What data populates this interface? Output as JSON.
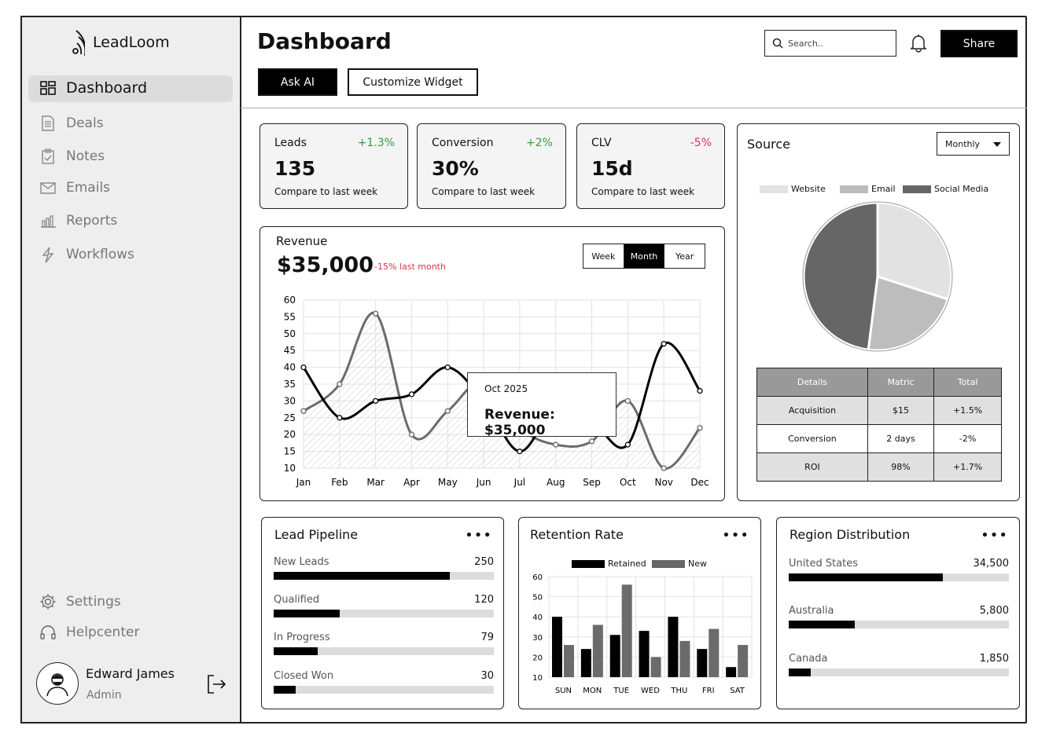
{
  "app": {
    "brand": "LeadLoom"
  },
  "sidebar": {
    "items": [
      {
        "label": "Dashboard"
      },
      {
        "label": "Deals"
      },
      {
        "label": "Notes"
      },
      {
        "label": "Emails"
      },
      {
        "label": "Reports"
      },
      {
        "label": "Workflows"
      }
    ],
    "bottom": [
      {
        "label": "Settings"
      },
      {
        "label": "Helpcenter"
      }
    ],
    "user": {
      "name": "Edward James",
      "role": "Admin"
    }
  },
  "header": {
    "title": "Dashboard",
    "ask_ai": "Ask AI",
    "customize": "Customize Widget",
    "search_placeholder": "Search..",
    "share": "Share"
  },
  "stats": [
    {
      "label": "Leads",
      "delta": "+1.3%",
      "value": "135",
      "compare": "Compare to last week"
    },
    {
      "label": "Conversion",
      "delta": "+2%",
      "value": "30%",
      "compare": "Compare to last week"
    },
    {
      "label": "CLV",
      "delta": "-5%",
      "value": "15d",
      "compare": "Compare to last week"
    }
  ],
  "revenue": {
    "title": "Revenue",
    "amount": "$35,000",
    "change": "-15% last month",
    "periods": [
      "Week",
      "Month",
      "Year"
    ],
    "active_period": "Month",
    "tooltip": {
      "date": "Oct 2025",
      "text": "Revenue: $35,000"
    }
  },
  "source": {
    "title": "Source",
    "period": "Monthly",
    "table": {
      "headers": [
        "Details",
        "Matric",
        "Total"
      ],
      "rows": [
        [
          "Acquisition",
          "$15",
          "+1.5%"
        ],
        [
          "Conversion",
          "2 days",
          "-2%"
        ],
        [
          "ROI",
          "98%",
          "+1.7%"
        ]
      ]
    }
  },
  "pipeline": {
    "title": "Lead Pipeline",
    "rows": [
      {
        "label": "New Leads",
        "value": "250",
        "fraction": 0.8
      },
      {
        "label": "Qualified",
        "value": "120",
        "fraction": 0.3
      },
      {
        "label": "In Progress",
        "value": "79",
        "fraction": 0.2
      },
      {
        "label": "Closed Won",
        "value": "30",
        "fraction": 0.1
      }
    ]
  },
  "retention": {
    "title": "Retention Rate"
  },
  "regions": {
    "title": "Region Distribution",
    "rows": [
      {
        "label": "United States",
        "value": "34,500",
        "fraction": 0.7
      },
      {
        "label": "Australia",
        "value": "5,800",
        "fraction": 0.3
      },
      {
        "label": "Canada",
        "value": "1,850",
        "fraction": 0.1
      }
    ]
  },
  "colors": {
    "positive": "#2e9e3e",
    "negative": "#d8344e",
    "accent": "#000000"
  },
  "chart_data": [
    {
      "type": "line",
      "title": "Revenue",
      "categories": [
        "Jan",
        "Feb",
        "Mar",
        "Apr",
        "May",
        "Jun",
        "Jul",
        "Aug",
        "Sep",
        "Oct",
        "Nov",
        "Dec"
      ],
      "yticks": [
        "60",
        "55",
        "50",
        "45",
        "40",
        "35",
        "30",
        "25",
        "20",
        "15",
        "10"
      ],
      "ylim": [
        10,
        60
      ],
      "series": [
        {
          "values": [
            40,
            25,
            30,
            32,
            40,
            30,
            15,
            28,
            24,
            17,
            47,
            33
          ]
        },
        {
          "values": [
            27,
            35,
            56,
            20,
            27,
            36,
            22,
            17,
            18,
            30,
            10,
            22
          ]
        }
      ],
      "grid": true
    },
    {
      "type": "pie",
      "legend": [
        "Website",
        "Email",
        "Social Media"
      ],
      "values": [
        30,
        22,
        48
      ]
    },
    {
      "type": "bar",
      "categories": [
        "SUN",
        "MON",
        "TUE",
        "WED",
        "THU",
        "FRI",
        "SAT"
      ],
      "yticks": [
        "60",
        "50",
        "40",
        "30",
        "20",
        "10"
      ],
      "ylim": [
        10,
        60
      ],
      "series": [
        {
          "name": "Retained",
          "values": [
            40,
            24,
            31,
            33,
            40,
            24,
            15
          ]
        },
        {
          "name": "New",
          "values": [
            26,
            36,
            56,
            20,
            28,
            34,
            26
          ]
        }
      ],
      "legend": [
        "Retained",
        "New"
      ],
      "grid": true
    }
  ]
}
